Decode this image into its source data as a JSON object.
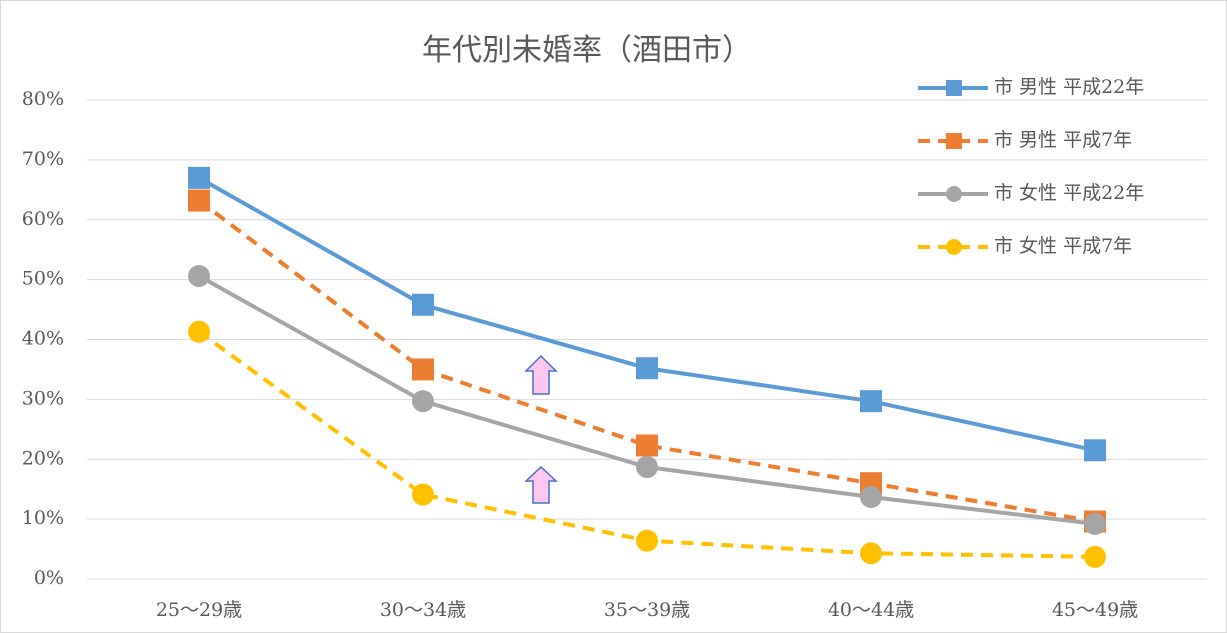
{
  "chart_data": {
    "type": "line",
    "title": "年代別未婚率（酒田市）",
    "categories": [
      "25～29歳",
      "30～34歳",
      "35～39歳",
      "40～44歳",
      "45～49歳"
    ],
    "series": [
      {
        "name": "市 男性 平成22年",
        "color": "#5b9bd5",
        "dashed": false,
        "marker": "square",
        "values": [
          67,
          45.8,
          35.2,
          29.7,
          21.5
        ]
      },
      {
        "name": "市 男性 平成7年",
        "color": "#ed7d31",
        "dashed": true,
        "marker": "square",
        "values": [
          63.2,
          35,
          22.3,
          16,
          9.6
        ]
      },
      {
        "name": "市 女性 平成22年",
        "color": "#a5a5a5",
        "dashed": false,
        "marker": "circle",
        "values": [
          50.6,
          29.7,
          18.7,
          13.7,
          9.2
        ]
      },
      {
        "name": "市 女性 平成7年",
        "color": "#ffc000",
        "dashed": true,
        "marker": "circle",
        "values": [
          41.3,
          14.1,
          6.4,
          4.3,
          3.7
        ]
      }
    ],
    "ylim": [
      0,
      80
    ],
    "yticks": [
      {
        "value": 0,
        "label": "0%"
      },
      {
        "value": 10,
        "label": "10%"
      },
      {
        "value": 20,
        "label": "20%"
      },
      {
        "value": 30,
        "label": "30%"
      },
      {
        "value": 40,
        "label": "40%"
      },
      {
        "value": 50,
        "label": "50%"
      },
      {
        "value": 60,
        "label": "60%"
      },
      {
        "value": 70,
        "label": "70%"
      },
      {
        "value": 80,
        "label": "80%"
      }
    ],
    "grid": true,
    "legend": "top-right"
  }
}
